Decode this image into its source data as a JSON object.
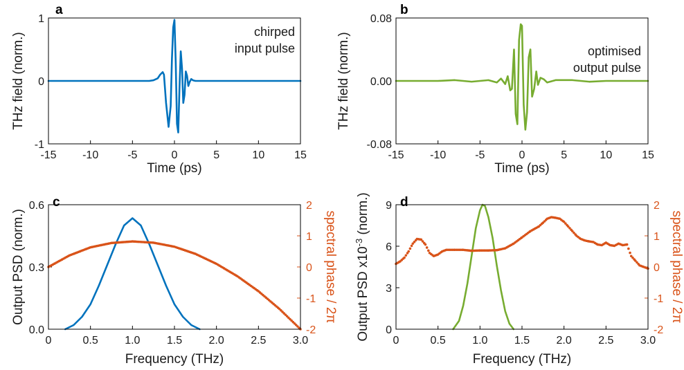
{
  "colors": {
    "blue": "#0072bd",
    "green": "#77ac30",
    "orange": "#d95319",
    "axis": "#000000"
  },
  "chart_data": [
    {
      "panel": "a",
      "type": "line",
      "xlabel": "Time (ps)",
      "ylabel": "THz field (norm.)",
      "annotation": [
        "chirped",
        "input pulse"
      ],
      "xlim": [
        -15,
        15
      ],
      "ylim": [
        -1,
        1
      ],
      "xticks": [
        "-15",
        "-10",
        "-5",
        "0",
        "5",
        "10",
        "15"
      ],
      "yticks": [
        "-1",
        "0",
        "1"
      ],
      "series": [
        {
          "color": "#0072bd",
          "x": [
            -15,
            -3,
            -2.5,
            -2,
            -1.7,
            -1.4,
            -1.25,
            -1,
            -0.7,
            -0.45,
            -0.3,
            -0.15,
            0,
            0.15,
            0.3,
            0.45,
            0.6,
            0.75,
            0.9,
            1.05,
            1.2,
            1.35,
            1.5,
            1.65,
            1.8,
            2.0,
            2.2,
            2.5,
            3,
            15
          ],
          "y": [
            0,
            0,
            0.01,
            0.04,
            0.1,
            0.14,
            0.1,
            -0.35,
            -0.73,
            -0.4,
            0.35,
            0.85,
            0.97,
            0.3,
            -0.68,
            -0.82,
            -0.1,
            0.47,
            0.2,
            -0.35,
            -0.22,
            0.15,
            0.08,
            -0.08,
            -0.02,
            0.03,
            0.01,
            0,
            0,
            0
          ]
        }
      ]
    },
    {
      "panel": "b",
      "type": "line",
      "xlabel": "Time (ps)",
      "ylabel": "THz field (norm.)",
      "annotation": [
        "optimised",
        "output pulse"
      ],
      "xlim": [
        -15,
        15
      ],
      "ylim": [
        -0.08,
        0.08
      ],
      "xticks": [
        "-15",
        "-10",
        "-5",
        "0",
        "5",
        "10",
        "15"
      ],
      "yticks": [
        "-0.08",
        "0.00",
        "0.08"
      ],
      "series": [
        {
          "color": "#77ac30",
          "x": [
            -15,
            -10,
            -8,
            -6,
            -4,
            -3,
            -2.5,
            -2,
            -1.7,
            -1.4,
            -1.2,
            -0.95,
            -0.75,
            -0.55,
            -0.35,
            -0.15,
            0,
            0.2,
            0.4,
            0.6,
            0.8,
            1.0,
            1.2,
            1.45,
            1.7,
            1.9,
            2.2,
            2.6,
            3,
            4,
            6,
            8,
            10,
            15
          ],
          "y": [
            0,
            0,
            0.001,
            -0.001,
            0.001,
            -0.002,
            0.003,
            -0.004,
            0.006,
            -0.012,
            -0.01,
            0.04,
            -0.042,
            -0.055,
            0.052,
            0.072,
            0.07,
            -0.03,
            -0.062,
            -0.04,
            0.03,
            0.04,
            -0.02,
            -0.01,
            0.012,
            -0.005,
            0.004,
            0.002,
            -0.002,
            0.001,
            0.001,
            -0.001,
            0,
            0
          ]
        }
      ]
    },
    {
      "panel": "c",
      "type": "line",
      "xlabel": "Frequency (THz)",
      "ylabel": "Output PSD (norm.)",
      "ylabel_right": "spectral phase / 2π",
      "xlim": [
        0,
        3.0
      ],
      "ylim": [
        0,
        0.6
      ],
      "ylim_right": [
        -2,
        2
      ],
      "xticks": [
        "0",
        "0.5",
        "1.0",
        "1.5",
        "2.0",
        "2.5",
        "3.0"
      ],
      "yticks": [
        "0.0",
        "0.3",
        "0.6"
      ],
      "yticks_right": [
        "-2",
        "-1",
        "0",
        "1",
        "2"
      ],
      "series": [
        {
          "color": "#0072bd",
          "x": [
            0.2,
            0.3,
            0.4,
            0.5,
            0.6,
            0.7,
            0.8,
            0.9,
            1.0,
            1.1,
            1.2,
            1.3,
            1.4,
            1.5,
            1.6,
            1.7,
            1.8
          ],
          "y": [
            0.0,
            0.02,
            0.06,
            0.12,
            0.21,
            0.31,
            0.41,
            0.5,
            0.535,
            0.5,
            0.41,
            0.31,
            0.21,
            0.12,
            0.06,
            0.02,
            0.0
          ]
        },
        {
          "color": "#d95319",
          "axis": "right",
          "marker": "dot",
          "x": [
            0,
            0.25,
            0.5,
            0.75,
            1.0,
            1.25,
            1.5,
            1.75,
            2.0,
            2.25,
            2.5,
            2.75,
            3.0
          ],
          "y": [
            0.0,
            0.37,
            0.63,
            0.77,
            0.82,
            0.78,
            0.65,
            0.42,
            0.1,
            -0.3,
            -0.78,
            -1.35,
            -2.0
          ]
        }
      ]
    },
    {
      "panel": "d",
      "type": "line",
      "xlabel": "Frequency (THz)",
      "ylabel": "Output PSD x10",
      "ylabel_exp": "-3",
      "ylabel_tail": " (norm.)",
      "ylabel_right": "spectral phase / 2π",
      "xlim": [
        0,
        3.0
      ],
      "ylim": [
        0,
        9
      ],
      "ylim_right": [
        -2,
        2
      ],
      "xticks": [
        "0",
        "0.5",
        "1.0",
        "1.5",
        "2.0",
        "2.5",
        "3.0"
      ],
      "yticks": [
        "0",
        "3",
        "6",
        "9"
      ],
      "yticks_right": [
        "-2",
        "-1",
        "0",
        "1",
        "2"
      ],
      "series": [
        {
          "color": "#77ac30",
          "x": [
            0.68,
            0.75,
            0.8,
            0.85,
            0.9,
            0.95,
            1.0,
            1.03,
            1.06,
            1.1,
            1.15,
            1.2,
            1.25,
            1.3,
            1.35,
            1.4
          ],
          "y": [
            0,
            0.6,
            1.7,
            3.3,
            5.3,
            7.3,
            8.6,
            9.0,
            8.9,
            8.1,
            6.6,
            4.6,
            2.8,
            1.3,
            0.4,
            0
          ]
        },
        {
          "color": "#d95319",
          "axis": "right",
          "marker": "dot",
          "x": [
            0,
            0.05,
            0.1,
            0.15,
            0.2,
            0.25,
            0.3,
            0.35,
            0.4,
            0.45,
            0.5,
            0.55,
            0.6,
            0.7,
            0.8,
            0.9,
            1.0,
            1.1,
            1.2,
            1.3,
            1.4,
            1.5,
            1.6,
            1.7,
            1.75,
            1.8,
            1.85,
            1.9,
            1.95,
            2.0,
            2.05,
            2.1,
            2.15,
            2.2,
            2.25,
            2.3,
            2.35,
            2.4,
            2.45,
            2.5,
            2.55,
            2.6,
            2.65,
            2.7,
            2.75,
            2.8,
            2.85,
            2.9,
            2.95,
            3.0
          ],
          "y": [
            0.1,
            0.18,
            0.3,
            0.5,
            0.75,
            0.9,
            0.88,
            0.72,
            0.45,
            0.35,
            0.4,
            0.5,
            0.55,
            0.55,
            0.55,
            0.52,
            0.53,
            0.53,
            0.54,
            0.6,
            0.75,
            0.95,
            1.15,
            1.3,
            1.42,
            1.55,
            1.6,
            1.58,
            1.55,
            1.45,
            1.3,
            1.15,
            1.0,
            0.9,
            0.85,
            0.82,
            0.8,
            0.72,
            0.7,
            0.78,
            0.7,
            0.68,
            0.75,
            0.7,
            0.72,
            0.35,
            0.2,
            0.05,
            0.0,
            -0.05
          ]
        }
      ]
    }
  ]
}
